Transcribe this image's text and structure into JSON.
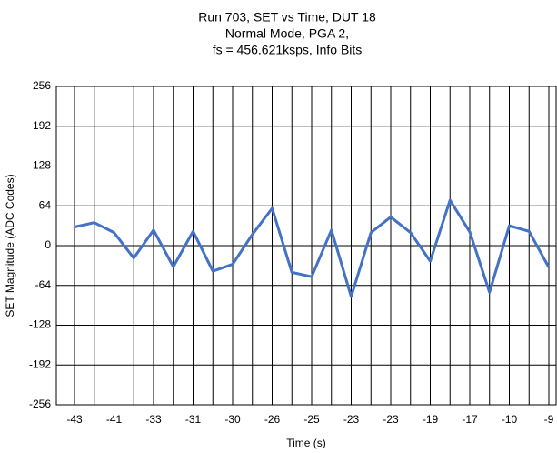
{
  "chart_data": {
    "type": "line",
    "title": [
      "Run 703, SET vs Time, DUT 18",
      "Normal Mode, PGA 2,",
      "fs = 456.621ksps, Info Bits"
    ],
    "xlabel": "Time (s)",
    "ylabel": "SET Magnitude (ADC Codes)",
    "categories": [
      "-43",
      null,
      "-41",
      null,
      "-33",
      null,
      "-31",
      null,
      "-30",
      null,
      "-26",
      null,
      "-25",
      null,
      "-23",
      null,
      "-23",
      null,
      "-19",
      null,
      "-17",
      null,
      "-10",
      null,
      "-9"
    ],
    "series": [
      {
        "name": "SET",
        "color": "#4472c4",
        "values": [
          30,
          37,
          21,
          -20,
          25,
          -34,
          23,
          -41,
          -30,
          18,
          60,
          -43,
          -50,
          25,
          -82,
          21,
          46,
          21,
          -25,
          73,
          22,
          -75,
          32,
          23,
          -35
        ]
      }
    ],
    "ylim": [
      -256,
      256
    ],
    "yticks": [
      -256,
      -192,
      -128,
      -64,
      0,
      64,
      128,
      192,
      256
    ],
    "grid": true
  }
}
